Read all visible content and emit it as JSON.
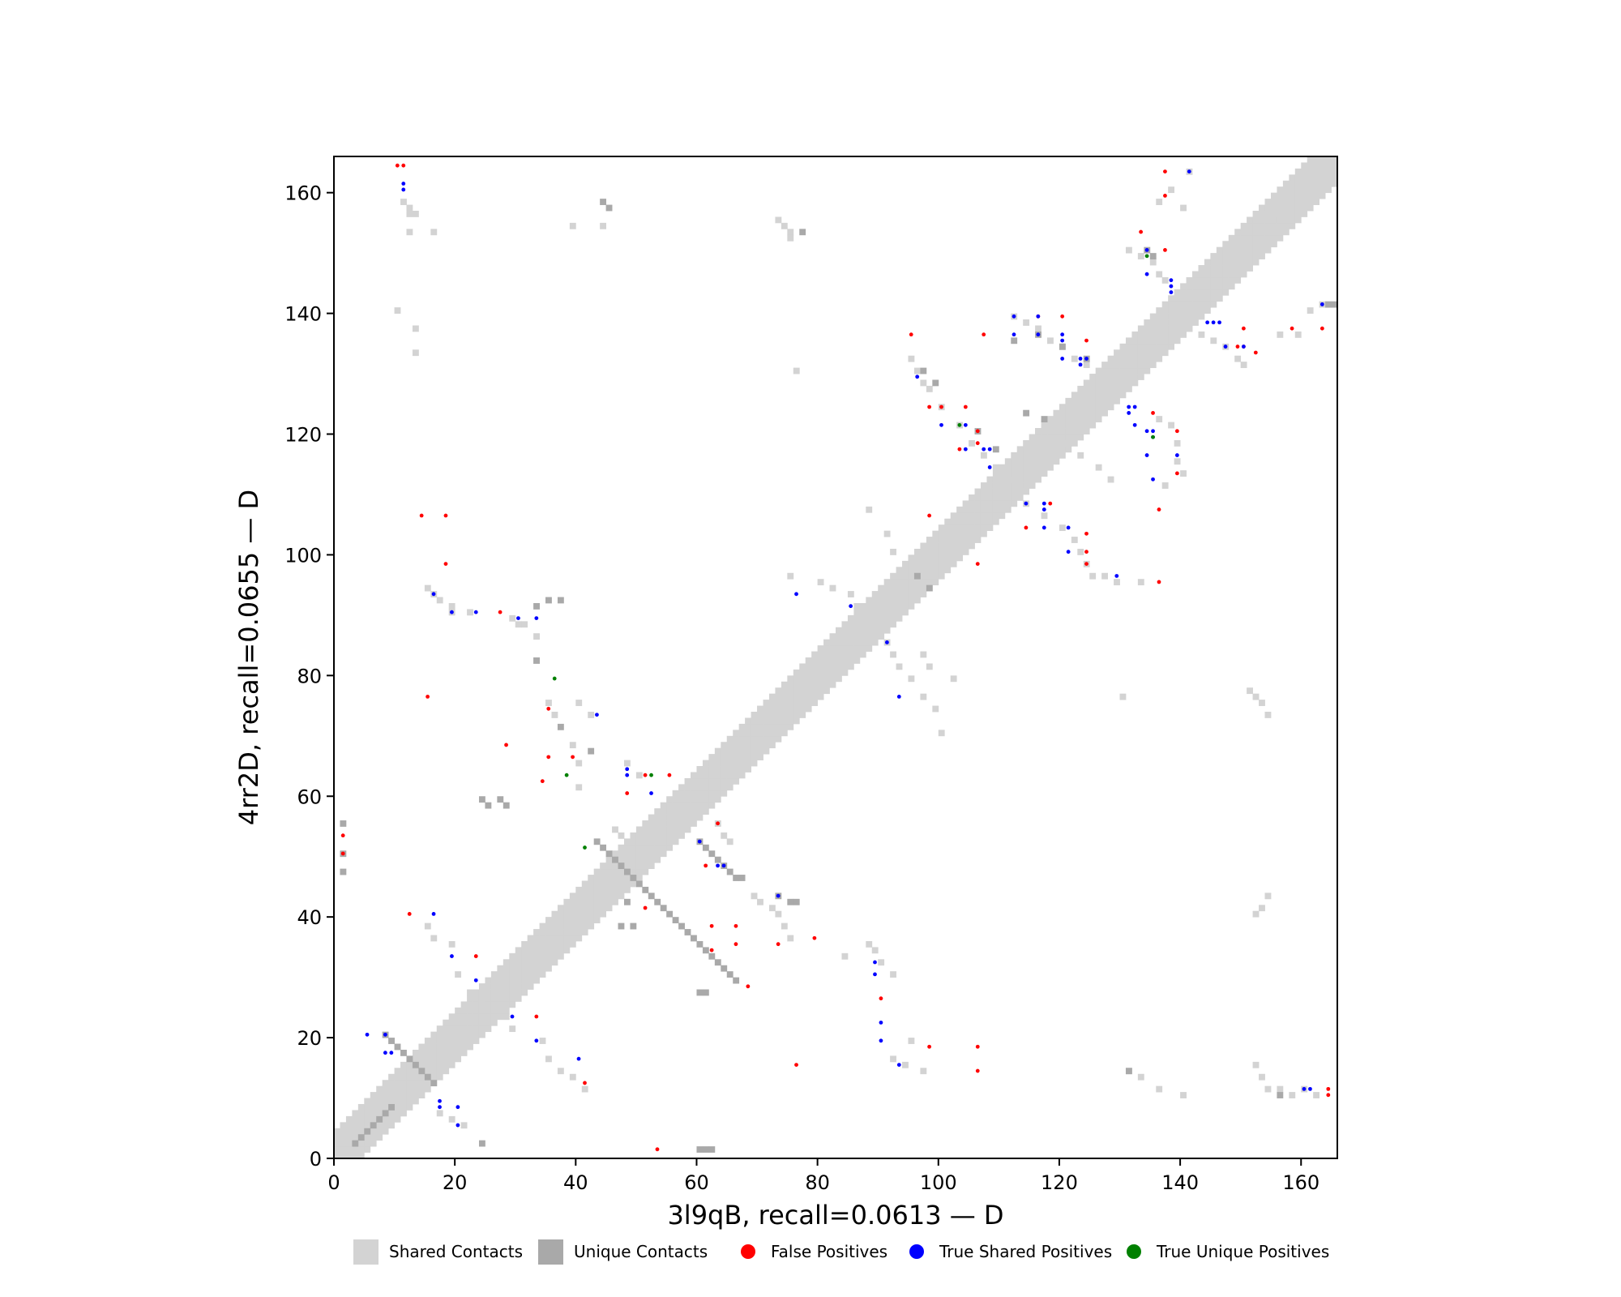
{
  "chart_data": {
    "type": "heatmap",
    "xlabel": "3l9qB, recall=0.0613 — D",
    "ylabel": "4rr2D, recall=0.0655 — D",
    "xlim": [
      0,
      166
    ],
    "ylim": [
      0,
      166
    ],
    "xticks": [
      0,
      20,
      40,
      60,
      80,
      100,
      120,
      140,
      160
    ],
    "yticks": [
      0,
      20,
      40,
      60,
      80,
      100,
      120,
      140,
      160
    ],
    "colors": {
      "shared": "#d3d3d3",
      "unique": "#a9a9a9",
      "false_positive": "#ff0000",
      "true_shared": "#0000ff",
      "true_unique": "#008000"
    },
    "legend": [
      {
        "label": "Shared Contacts",
        "kind": "rect",
        "color": "#d3d3d3"
      },
      {
        "label": "Unique Contacts",
        "kind": "rect",
        "color": "#a9a9a9"
      },
      {
        "label": "False Positives",
        "kind": "dot",
        "color": "#ff0000"
      },
      {
        "label": "True Shared Positives",
        "kind": "dot",
        "color": "#0000ff"
      },
      {
        "label": "True Unique Positives",
        "kind": "dot",
        "color": "#008000"
      }
    ],
    "diagonal": {
      "from": 0,
      "to": 165,
      "color": "#d3d3d3"
    },
    "shared_contacts": [
      [
        11,
        158
      ],
      [
        12,
        157
      ],
      [
        12,
        156
      ],
      [
        13,
        156
      ],
      [
        12,
        153
      ],
      [
        16,
        153
      ],
      [
        39,
        154
      ],
      [
        44,
        154
      ],
      [
        73,
        155
      ],
      [
        74,
        154
      ],
      [
        75,
        153
      ],
      [
        75,
        152
      ],
      [
        10,
        140
      ],
      [
        13,
        137
      ],
      [
        13,
        133
      ],
      [
        76,
        130
      ],
      [
        15,
        94
      ],
      [
        16,
        93
      ],
      [
        17,
        92
      ],
      [
        19,
        91
      ],
      [
        19,
        90
      ],
      [
        22,
        90
      ],
      [
        29,
        89
      ],
      [
        30,
        88
      ],
      [
        31,
        88
      ],
      [
        33,
        86
      ],
      [
        33,
        82
      ],
      [
        35,
        75
      ],
      [
        36,
        73
      ],
      [
        40,
        75
      ],
      [
        42,
        73
      ],
      [
        39,
        68
      ],
      [
        40,
        65
      ],
      [
        48,
        65
      ],
      [
        50,
        63
      ],
      [
        40,
        61
      ],
      [
        46,
        54
      ],
      [
        47,
        53
      ],
      [
        63,
        55
      ],
      [
        64,
        53
      ],
      [
        65,
        52
      ],
      [
        69,
        43
      ],
      [
        70,
        42
      ],
      [
        72,
        41
      ],
      [
        73,
        40
      ],
      [
        74,
        38
      ],
      [
        75,
        36
      ],
      [
        84,
        33
      ],
      [
        88,
        35
      ],
      [
        89,
        34
      ],
      [
        90,
        32
      ],
      [
        92,
        30
      ],
      [
        95,
        19
      ],
      [
        92,
        16
      ],
      [
        94,
        15
      ],
      [
        97,
        14
      ],
      [
        16,
        36
      ],
      [
        15,
        38
      ],
      [
        19,
        35
      ],
      [
        20,
        30
      ],
      [
        22,
        27
      ],
      [
        24,
        25
      ],
      [
        28,
        23
      ],
      [
        29,
        21
      ],
      [
        34,
        19
      ],
      [
        35,
        16
      ],
      [
        37,
        14
      ],
      [
        39,
        13
      ],
      [
        41,
        11
      ],
      [
        14,
        10
      ],
      [
        17,
        7
      ],
      [
        19,
        6
      ],
      [
        21,
        5
      ],
      [
        75,
        96
      ],
      [
        80,
        95
      ],
      [
        82,
        94
      ],
      [
        85,
        93
      ],
      [
        86,
        91
      ],
      [
        88,
        89
      ],
      [
        90,
        87
      ],
      [
        91,
        85
      ],
      [
        92,
        83
      ],
      [
        93,
        81
      ],
      [
        95,
        79
      ],
      [
        97,
        76
      ],
      [
        99,
        74
      ],
      [
        100,
        70
      ],
      [
        97,
        83
      ],
      [
        98,
        81
      ],
      [
        102,
        79
      ],
      [
        88,
        107
      ],
      [
        91,
        103
      ],
      [
        92,
        100
      ],
      [
        95,
        99
      ],
      [
        107,
        107
      ],
      [
        95,
        132
      ],
      [
        96,
        130
      ],
      [
        97,
        128
      ],
      [
        98,
        127
      ],
      [
        100,
        124
      ],
      [
        103,
        121
      ],
      [
        105,
        118
      ],
      [
        107,
        116
      ],
      [
        109,
        114
      ],
      [
        111,
        112
      ],
      [
        113,
        110
      ],
      [
        112,
        139
      ],
      [
        114,
        138
      ],
      [
        116,
        137
      ],
      [
        118,
        135
      ],
      [
        120,
        134
      ],
      [
        122,
        132
      ],
      [
        124,
        131
      ],
      [
        116,
        120
      ],
      [
        120,
        118
      ],
      [
        123,
        116
      ],
      [
        126,
        114
      ],
      [
        128,
        112
      ],
      [
        114,
        108
      ],
      [
        117,
        106
      ],
      [
        120,
        104
      ],
      [
        122,
        102
      ],
      [
        123,
        100
      ],
      [
        124,
        98
      ],
      [
        125,
        96
      ],
      [
        127,
        96
      ],
      [
        129,
        95
      ],
      [
        133,
        95
      ],
      [
        130,
        76
      ],
      [
        136,
        122
      ],
      [
        138,
        121
      ],
      [
        139,
        118
      ],
      [
        139,
        115
      ],
      [
        140,
        113
      ],
      [
        137,
        111
      ],
      [
        131,
        150
      ],
      [
        133,
        149
      ],
      [
        135,
        148
      ],
      [
        136,
        146
      ],
      [
        137,
        145
      ],
      [
        136,
        158
      ],
      [
        138,
        160
      ],
      [
        141,
        163
      ],
      [
        140,
        157
      ],
      [
        153,
        157
      ],
      [
        155,
        155
      ],
      [
        138,
        138
      ],
      [
        141,
        137
      ],
      [
        143,
        136
      ],
      [
        145,
        135
      ],
      [
        147,
        134
      ],
      [
        149,
        132
      ],
      [
        150,
        131
      ],
      [
        156,
        136
      ],
      [
        159,
        136
      ],
      [
        161,
        140
      ],
      [
        163,
        141
      ],
      [
        151,
        77
      ],
      [
        152,
        76
      ],
      [
        153,
        75
      ],
      [
        154,
        73
      ],
      [
        154,
        43
      ],
      [
        153,
        41
      ],
      [
        152,
        40
      ],
      [
        131,
        14
      ],
      [
        133,
        13
      ],
      [
        136,
        11
      ],
      [
        140,
        10
      ],
      [
        152,
        15
      ],
      [
        153,
        13
      ],
      [
        154,
        11
      ],
      [
        156,
        11
      ],
      [
        158,
        10
      ],
      [
        160,
        11
      ],
      [
        162,
        10
      ]
    ],
    "unique_contacts": [
      [
        44,
        158
      ],
      [
        45,
        157
      ],
      [
        77,
        153
      ],
      [
        1,
        55
      ],
      [
        1,
        50
      ],
      [
        1,
        47
      ],
      [
        33,
        91
      ],
      [
        33,
        82
      ],
      [
        35,
        92
      ],
      [
        37,
        92
      ],
      [
        37,
        71
      ],
      [
        42,
        67
      ],
      [
        24,
        59
      ],
      [
        25,
        58
      ],
      [
        27,
        59
      ],
      [
        28,
        58
      ],
      [
        43,
        52
      ],
      [
        44,
        51
      ],
      [
        45,
        50
      ],
      [
        46,
        49
      ],
      [
        47,
        48
      ],
      [
        48,
        47
      ],
      [
        49,
        46
      ],
      [
        50,
        45
      ],
      [
        51,
        44
      ],
      [
        52,
        43
      ],
      [
        53,
        42
      ],
      [
        54,
        41
      ],
      [
        55,
        40
      ],
      [
        56,
        39
      ],
      [
        57,
        38
      ],
      [
        58,
        37
      ],
      [
        59,
        36
      ],
      [
        60,
        35
      ],
      [
        61,
        34
      ],
      [
        62,
        33
      ],
      [
        63,
        32
      ],
      [
        64,
        31
      ],
      [
        65,
        30
      ],
      [
        66,
        29
      ],
      [
        60,
        52
      ],
      [
        61,
        51
      ],
      [
        62,
        50
      ],
      [
        63,
        49
      ],
      [
        64,
        48
      ],
      [
        65,
        47
      ],
      [
        66,
        46
      ],
      [
        67,
        46
      ],
      [
        48,
        42
      ],
      [
        47,
        38
      ],
      [
        49,
        38
      ],
      [
        60,
        27
      ],
      [
        61,
        27
      ],
      [
        24,
        2
      ],
      [
        60,
        1
      ],
      [
        61,
        1
      ],
      [
        62,
        1
      ],
      [
        73,
        43
      ],
      [
        75,
        42
      ],
      [
        76,
        42
      ],
      [
        97,
        130
      ],
      [
        99,
        128
      ],
      [
        106,
        120
      ],
      [
        109,
        117
      ],
      [
        112,
        135
      ],
      [
        116,
        136
      ],
      [
        120,
        134
      ],
      [
        124,
        132
      ],
      [
        134,
        150
      ],
      [
        135,
        149
      ],
      [
        131,
        14
      ],
      [
        156,
        10
      ],
      [
        164,
        141
      ],
      [
        165,
        141
      ],
      [
        96,
        96
      ],
      [
        98,
        94
      ],
      [
        114,
        123
      ],
      [
        117,
        122
      ],
      [
        8,
        20
      ],
      [
        9,
        19
      ],
      [
        10,
        18
      ],
      [
        11,
        17
      ],
      [
        12,
        16
      ],
      [
        13,
        15
      ],
      [
        14,
        14
      ],
      [
        15,
        13
      ],
      [
        16,
        12
      ],
      [
        3,
        2
      ],
      [
        4,
        3
      ],
      [
        5,
        4
      ],
      [
        6,
        5
      ],
      [
        7,
        6
      ],
      [
        8,
        7
      ],
      [
        9,
        8
      ]
    ],
    "false_positives": [
      [
        10,
        164
      ],
      [
        11,
        164
      ],
      [
        137,
        163
      ],
      [
        137,
        159
      ],
      [
        133,
        153
      ],
      [
        137,
        150
      ],
      [
        95,
        136
      ],
      [
        107,
        136
      ],
      [
        116,
        139
      ],
      [
        120,
        139
      ],
      [
        124,
        135
      ],
      [
        150,
        134
      ],
      [
        149,
        134
      ],
      [
        152,
        133
      ],
      [
        150,
        137
      ],
      [
        158,
        137
      ],
      [
        163,
        137
      ],
      [
        98,
        124
      ],
      [
        100,
        124
      ],
      [
        104,
        124
      ],
      [
        106,
        120
      ],
      [
        106,
        118
      ],
      [
        103,
        117
      ],
      [
        135,
        123
      ],
      [
        139,
        120
      ],
      [
        139,
        113
      ],
      [
        136,
        107
      ],
      [
        14,
        106
      ],
      [
        18,
        106
      ],
      [
        98,
        106
      ],
      [
        106,
        98
      ],
      [
        114,
        104
      ],
      [
        118,
        108
      ],
      [
        124,
        103
      ],
      [
        124,
        100
      ],
      [
        124,
        98
      ],
      [
        136,
        95
      ],
      [
        18,
        98
      ],
      [
        15,
        76
      ],
      [
        27,
        90
      ],
      [
        28,
        68
      ],
      [
        35,
        74
      ],
      [
        35,
        66
      ],
      [
        39,
        66
      ],
      [
        34,
        62
      ],
      [
        48,
        60
      ],
      [
        51,
        63
      ],
      [
        55,
        63
      ],
      [
        1,
        53
      ],
      [
        1,
        50
      ],
      [
        61,
        48
      ],
      [
        63,
        55
      ],
      [
        51,
        41
      ],
      [
        12,
        40
      ],
      [
        23,
        33
      ],
      [
        62,
        38
      ],
      [
        66,
        38
      ],
      [
        66,
        35
      ],
      [
        62,
        34
      ],
      [
        73,
        35
      ],
      [
        79,
        36
      ],
      [
        68,
        28
      ],
      [
        33,
        23
      ],
      [
        41,
        12
      ],
      [
        53,
        1
      ],
      [
        76,
        15
      ],
      [
        90,
        26
      ],
      [
        98,
        18
      ],
      [
        106,
        18
      ],
      [
        106,
        14
      ],
      [
        164,
        11
      ],
      [
        164,
        10
      ]
    ],
    "true_shared_positives": [
      [
        11,
        161
      ],
      [
        11,
        160
      ],
      [
        141,
        163
      ],
      [
        134,
        150
      ],
      [
        134,
        146
      ],
      [
        138,
        145
      ],
      [
        138,
        144
      ],
      [
        138,
        143
      ],
      [
        112,
        139
      ],
      [
        116,
        139
      ],
      [
        116,
        136
      ],
      [
        112,
        136
      ],
      [
        120,
        136
      ],
      [
        120,
        135
      ],
      [
        120,
        132
      ],
      [
        123,
        132
      ],
      [
        124,
        132
      ],
      [
        123,
        131
      ],
      [
        96,
        129
      ],
      [
        100,
        121
      ],
      [
        104,
        121
      ],
      [
        131,
        124
      ],
      [
        132,
        124
      ],
      [
        131,
        123
      ],
      [
        132,
        121
      ],
      [
        134,
        120
      ],
      [
        135,
        120
      ],
      [
        135,
        119
      ],
      [
        104,
        117
      ],
      [
        107,
        117
      ],
      [
        108,
        117
      ],
      [
        139,
        116
      ],
      [
        134,
        116
      ],
      [
        108,
        114
      ],
      [
        135,
        112
      ],
      [
        114,
        108
      ],
      [
        117,
        108
      ],
      [
        117,
        107
      ],
      [
        117,
        104
      ],
      [
        121,
        104
      ],
      [
        121,
        100
      ],
      [
        129,
        96
      ],
      [
        16,
        93
      ],
      [
        19,
        90
      ],
      [
        23,
        90
      ],
      [
        30,
        89
      ],
      [
        33,
        89
      ],
      [
        76,
        93
      ],
      [
        85,
        91
      ],
      [
        91,
        85
      ],
      [
        93,
        76
      ],
      [
        43,
        73
      ],
      [
        48,
        64
      ],
      [
        48,
        63
      ],
      [
        52,
        60
      ],
      [
        60,
        52
      ],
      [
        63,
        48
      ],
      [
        64,
        48
      ],
      [
        73,
        43
      ],
      [
        16,
        40
      ],
      [
        19,
        33
      ],
      [
        23,
        29
      ],
      [
        29,
        23
      ],
      [
        33,
        19
      ],
      [
        40,
        16
      ],
      [
        89,
        32
      ],
      [
        89,
        30
      ],
      [
        90,
        22
      ],
      [
        90,
        19
      ],
      [
        93,
        15
      ],
      [
        5,
        20
      ],
      [
        8,
        20
      ],
      [
        8,
        17
      ],
      [
        9,
        17
      ],
      [
        17,
        9
      ],
      [
        17,
        8
      ],
      [
        20,
        8
      ],
      [
        20,
        5
      ],
      [
        160,
        11
      ],
      [
        161,
        11
      ],
      [
        163,
        141
      ],
      [
        144,
        138
      ],
      [
        145,
        138
      ],
      [
        146,
        138
      ],
      [
        147,
        134
      ],
      [
        150,
        134
      ]
    ],
    "true_unique_positives": [
      [
        134,
        149
      ],
      [
        103,
        121
      ],
      [
        135,
        119
      ],
      [
        36,
        79
      ],
      [
        38,
        63
      ],
      [
        52,
        63
      ],
      [
        41,
        51
      ]
    ]
  }
}
